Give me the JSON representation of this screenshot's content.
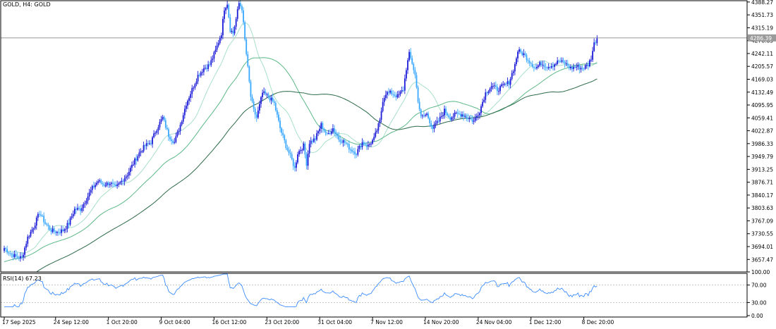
{
  "chart_data": {
    "type": "candlestick",
    "title": "GOLD, H4:  GOLD",
    "price_axis": {
      "ticks": [
        "4388.27",
        "4351.73",
        "4315.19",
        "4278.65",
        "4242.11",
        "4205.57",
        "4169.03",
        "4132.49",
        "4095.95",
        "4059.41",
        "4022.87",
        "3986.33",
        "3949.79",
        "3913.25",
        "3876.71",
        "3840.17",
        "3803.63",
        "3767.09",
        "3730.55",
        "3694.01",
        "3657.47"
      ],
      "range": [
        3622,
        4392
      ]
    },
    "current_price": {
      "label": "4286.39",
      "value": 4286.39
    },
    "time_labels": [
      {
        "label": "17 Sep 2025",
        "bar": 0
      },
      {
        "label": "24 Sep 12:00",
        "bar": 35
      },
      {
        "label": "1 Oct 20:00",
        "bar": 71
      },
      {
        "label": "9 Oct 04:00",
        "bar": 107
      },
      {
        "label": "16 Oct 12:00",
        "bar": 143
      },
      {
        "label": "23 Oct 20:00",
        "bar": 179
      },
      {
        "label": "31 Oct 04:00",
        "bar": 215
      },
      {
        "label": "7 Nov 12:00",
        "bar": 251
      },
      {
        "label": "14 Nov 20:00",
        "bar": 287
      },
      {
        "label": "24 Nov 04:00",
        "bar": 323
      },
      {
        "label": "1 Dec 12:00",
        "bar": 359
      },
      {
        "label": "8 Dec 20:00",
        "bar": 395
      }
    ],
    "anchors": [
      [
        0,
        3690
      ],
      [
        4,
        3675
      ],
      [
        8,
        3665
      ],
      [
        12,
        3662
      ],
      [
        16,
        3720
      ],
      [
        20,
        3750
      ],
      [
        24,
        3790
      ],
      [
        28,
        3760
      ],
      [
        32,
        3740
      ],
      [
        36,
        3735
      ],
      [
        40,
        3740
      ],
      [
        44,
        3760
      ],
      [
        48,
        3800
      ],
      [
        52,
        3800
      ],
      [
        56,
        3830
      ],
      [
        60,
        3860
      ],
      [
        64,
        3880
      ],
      [
        68,
        3870
      ],
      [
        72,
        3875
      ],
      [
        76,
        3860
      ],
      [
        80,
        3880
      ],
      [
        84,
        3900
      ],
      [
        88,
        3930
      ],
      [
        92,
        3960
      ],
      [
        96,
        3980
      ],
      [
        100,
        3990
      ],
      [
        104,
        4030
      ],
      [
        108,
        4060
      ],
      [
        112,
        4010
      ],
      [
        116,
        3990
      ],
      [
        120,
        4040
      ],
      [
        124,
        4100
      ],
      [
        128,
        4140
      ],
      [
        132,
        4180
      ],
      [
        136,
        4200
      ],
      [
        140,
        4210
      ],
      [
        144,
        4250
      ],
      [
        148,
        4300
      ],
      [
        150,
        4370
      ],
      [
        152,
        4385
      ],
      [
        154,
        4310
      ],
      [
        156,
        4300
      ],
      [
        158,
        4340
      ],
      [
        160,
        4385
      ],
      [
        162,
        4370
      ],
      [
        164,
        4280
      ],
      [
        166,
        4200
      ],
      [
        168,
        4120
      ],
      [
        170,
        4080
      ],
      [
        172,
        4060
      ],
      [
        176,
        4130
      ],
      [
        180,
        4120
      ],
      [
        184,
        4100
      ],
      [
        188,
        4030
      ],
      [
        192,
        3980
      ],
      [
        196,
        3940
      ],
      [
        198,
        3915
      ],
      [
        200,
        3960
      ],
      [
        204,
        3980
      ],
      [
        206,
        3930
      ],
      [
        208,
        3990
      ],
      [
        212,
        4000
      ],
      [
        216,
        4040
      ],
      [
        220,
        4010
      ],
      [
        224,
        4030
      ],
      [
        228,
        4000
      ],
      [
        232,
        3990
      ],
      [
        236,
        3970
      ],
      [
        240,
        3960
      ],
      [
        244,
        3990
      ],
      [
        248,
        3980
      ],
      [
        252,
        4000
      ],
      [
        256,
        4050
      ],
      [
        258,
        4110
      ],
      [
        260,
        4130
      ],
      [
        264,
        4130
      ],
      [
        268,
        4120
      ],
      [
        272,
        4140
      ],
      [
        274,
        4200
      ],
      [
        276,
        4240
      ],
      [
        278,
        4215
      ],
      [
        280,
        4180
      ],
      [
        282,
        4110
      ],
      [
        284,
        4060
      ],
      [
        288,
        4070
      ],
      [
        292,
        4030
      ],
      [
        296,
        4050
      ],
      [
        300,
        4080
      ],
      [
        304,
        4060
      ],
      [
        308,
        4070
      ],
      [
        312,
        4070
      ],
      [
        316,
        4060
      ],
      [
        320,
        4050
      ],
      [
        324,
        4080
      ],
      [
        328,
        4130
      ],
      [
        332,
        4150
      ],
      [
        336,
        4140
      ],
      [
        340,
        4150
      ],
      [
        344,
        4160
      ],
      [
        348,
        4210
      ],
      [
        350,
        4250
      ],
      [
        354,
        4240
      ],
      [
        358,
        4220
      ],
      [
        362,
        4200
      ],
      [
        366,
        4215
      ],
      [
        370,
        4205
      ],
      [
        374,
        4210
      ],
      [
        378,
        4220
      ],
      [
        382,
        4215
      ],
      [
        386,
        4200
      ],
      [
        390,
        4205
      ],
      [
        394,
        4200
      ],
      [
        398,
        4210
      ],
      [
        400,
        4230
      ],
      [
        402,
        4270
      ],
      [
        404,
        4285
      ]
    ],
    "moving_averages": [
      {
        "period": 20,
        "color": "#a8e0c8"
      },
      {
        "period": 50,
        "color": "#5cb888"
      },
      {
        "period": 100,
        "color": "#2e6a4a"
      }
    ],
    "rsi": {
      "label": "RSI(14) 67.23",
      "value": 67.23,
      "ticks": [
        "100.00",
        "70.00",
        "30.00",
        "0.00"
      ],
      "levels": [
        70,
        30
      ]
    },
    "colors": {
      "bull": "#1c1cd8",
      "bear": "#3aa8ff",
      "ma20": "#a8e0c8",
      "ma50": "#5cb888",
      "ma100": "#2e6a4a",
      "rsi_line": "#3c8cff",
      "grid_text": "#000000"
    }
  }
}
